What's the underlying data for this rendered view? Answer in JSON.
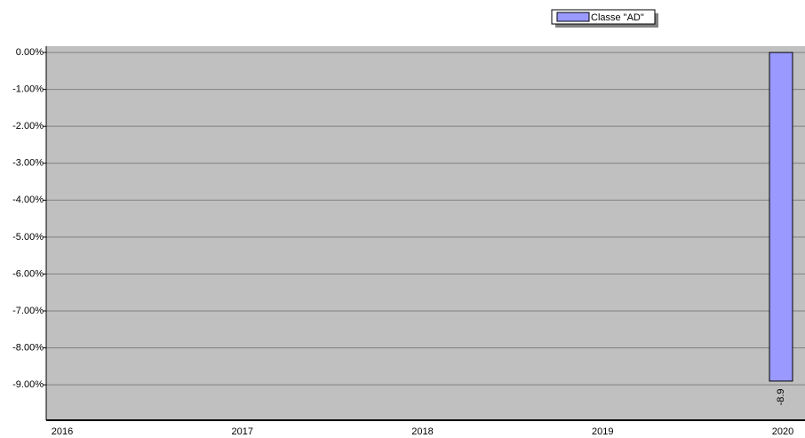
{
  "chart_data": {
    "type": "bar",
    "categories": [
      "2016",
      "2017",
      "2018",
      "2019",
      "2020"
    ],
    "series": [
      {
        "name": "Classe \"AD\"",
        "color": "#9999ff",
        "values": [
          null,
          null,
          null,
          null,
          -8.9
        ]
      }
    ],
    "ylim": [
      -9.96,
      0.17
    ],
    "yticks": [
      {
        "value": 0,
        "label": "0.00%"
      },
      {
        "value": -1,
        "label": "-1.00%"
      },
      {
        "value": -2,
        "label": "-2.00%"
      },
      {
        "value": -3,
        "label": "-3.00%"
      },
      {
        "value": -4,
        "label": "-4.00%"
      },
      {
        "value": -5,
        "label": "-5.00%"
      },
      {
        "value": -6,
        "label": "-6.00%"
      },
      {
        "value": -7,
        "label": "-7.00%"
      },
      {
        "value": -8,
        "label": "-8.00%"
      },
      {
        "value": -9,
        "label": "-9.00%"
      }
    ],
    "grid": true,
    "legend": "top-right"
  }
}
